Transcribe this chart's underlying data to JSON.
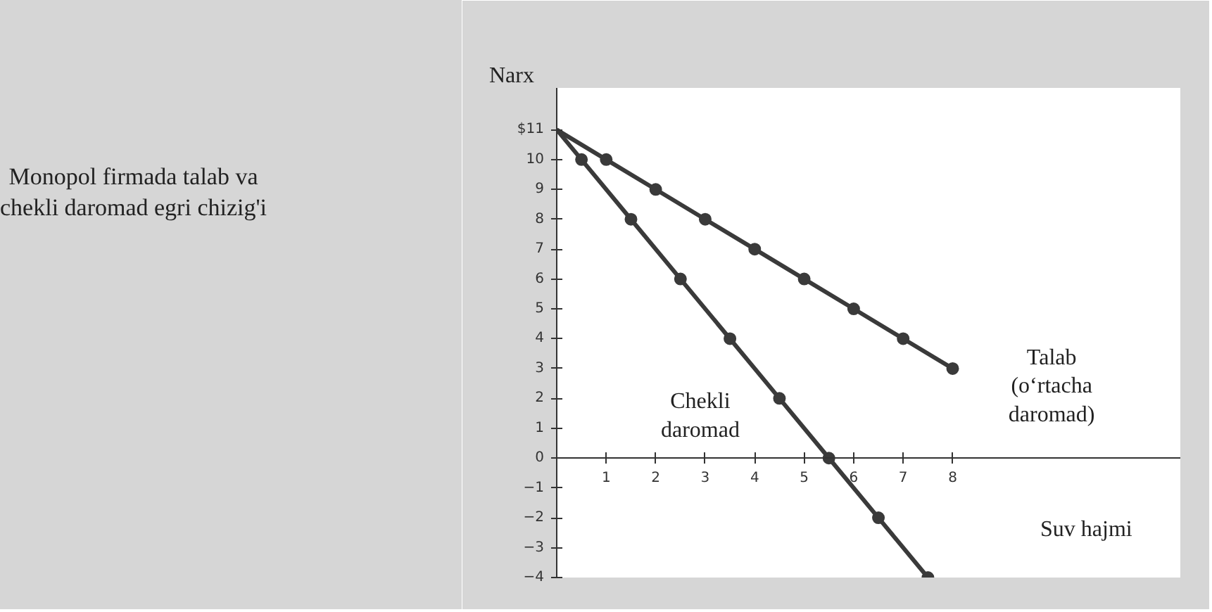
{
  "chart_data": {
    "type": "line",
    "title": "Monopol firmada talab va\nchekli daromad egri chizig'i",
    "xlabel": "Suv hajmi",
    "ylabel": "Narx",
    "xlim": [
      0,
      12.6
    ],
    "ylim": [
      -4,
      12.4
    ],
    "xticks": [
      1,
      2,
      3,
      4,
      5,
      6,
      7,
      8
    ],
    "yticks": [
      -4,
      -3,
      -2,
      -1,
      0,
      1,
      2,
      3,
      4,
      5,
      6,
      7,
      8,
      9,
      10,
      {
        "value": 11,
        "label": "$11"
      }
    ],
    "grid": false,
    "marker": "circle",
    "line_style": "solid",
    "series": [
      {
        "name": "Talab\n(o‘rtacha\ndaromad)",
        "color": "#3a3a3a",
        "x": [
          0,
          1,
          2,
          3,
          4,
          5,
          6,
          7,
          8
        ],
        "values": [
          11,
          10,
          9,
          8,
          7,
          6,
          5,
          4,
          3
        ]
      },
      {
        "name": "Chekli\ndaromad",
        "color": "#3a3a3a",
        "x": [
          0,
          0.5,
          1.5,
          2.5,
          3.5,
          4.5,
          5.5,
          6.5,
          7.5
        ],
        "values": [
          11,
          10,
          8,
          6,
          4,
          2,
          0,
          -2,
          -4
        ]
      }
    ]
  }
}
